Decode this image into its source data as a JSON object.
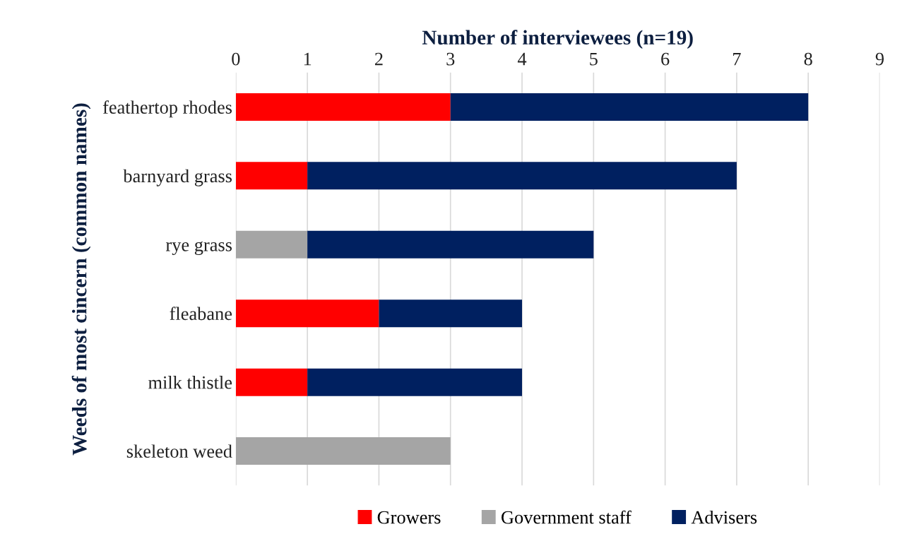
{
  "chart_data": {
    "type": "bar",
    "orientation": "horizontal",
    "stacked": true,
    "xlabel": "Number of interviewees (n=19)",
    "ylabel": "Weeds of most cincern (common names)",
    "categories": [
      "feathertop rhodes",
      "barnyard grass",
      "rye grass",
      "fleabane",
      "milk thistle",
      "skeleton weed"
    ],
    "series": [
      {
        "name": "Growers",
        "color": "#ff0000",
        "values": [
          3,
          1,
          0,
          2,
          1,
          0
        ]
      },
      {
        "name": "Government staff",
        "color": "#a5a5a5",
        "values": [
          0,
          0,
          1,
          0,
          0,
          3
        ]
      },
      {
        "name": "Advisers",
        "color": "#002060",
        "values": [
          5,
          6,
          4,
          2,
          3,
          0
        ]
      }
    ],
    "xlim": [
      0,
      9
    ],
    "xticks": [
      0,
      1,
      2,
      3,
      4,
      5,
      6,
      7,
      8,
      9
    ],
    "grid": "x",
    "legend": "bottom"
  }
}
